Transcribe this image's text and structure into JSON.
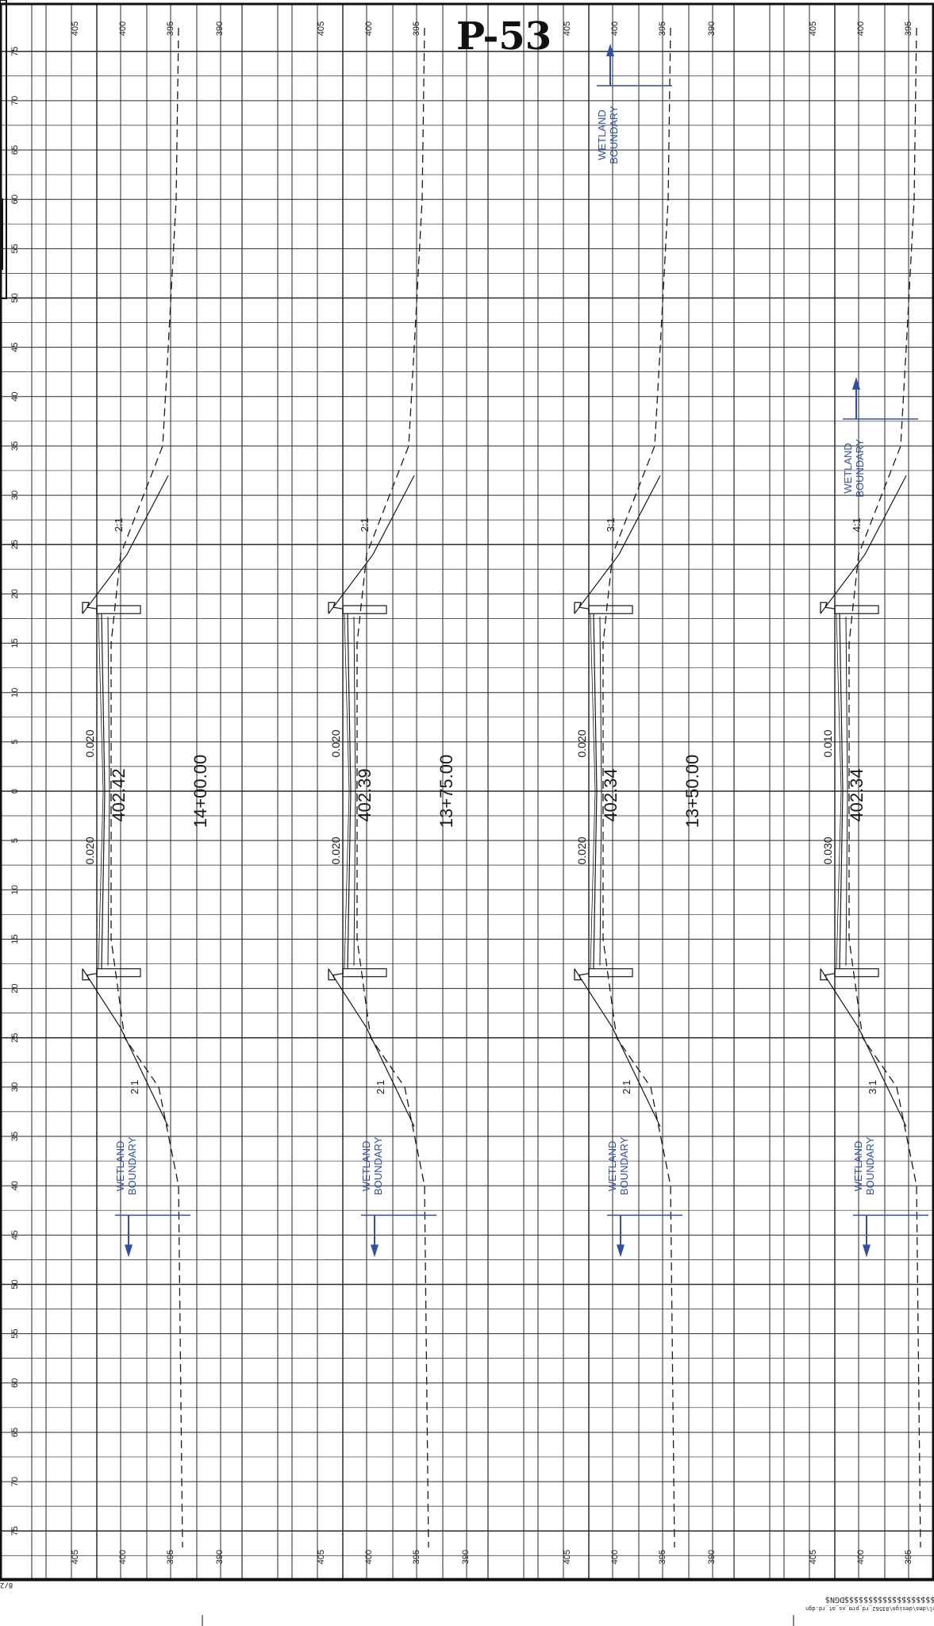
{
  "sheet": {
    "number": "P-53",
    "bottom_stamp": "$$$$$$$$$$$$$$$$$$$$$DGN$",
    "file_path": "ntsmodel\\dms\\design\\83562_rd_prm_xs_at_rd.dgn",
    "date_stamp": "8/2",
    "colors": {
      "grid": "#2a2a2a",
      "ink": "#1a1a1a",
      "annotation": "#2f4fa8"
    }
  },
  "offset_labels": [
    "75",
    "70",
    "65",
    "60",
    "55",
    "50",
    "45",
    "40",
    "35",
    "30",
    "25",
    "20",
    "15",
    "10",
    "5",
    "0",
    "5",
    "10",
    "15",
    "20",
    "25",
    "30",
    "35",
    "40",
    "45",
    "50",
    "55",
    "60",
    "65",
    "70",
    "75"
  ],
  "elevation_labels": [
    "405",
    "400",
    "395",
    "390"
  ],
  "sections": [
    {
      "station": "14+00.00",
      "profile_grade": "402.42",
      "slope_top": "0.020",
      "slope_bottom": "0.020",
      "fill_slope_top": "2:1",
      "fill_slope_bottom": "2:1",
      "wetland_label": [
        "WETLAND",
        "BOUNDARY"
      ],
      "wetland_direction": "down"
    },
    {
      "station": "13+75.00",
      "profile_grade": "402.39",
      "slope_top": "0.020",
      "slope_bottom": "0.020",
      "fill_slope_top": "2:1",
      "fill_slope_bottom": "2:1",
      "wetland_label": [
        "WETLAND",
        "BOUNDARY"
      ],
      "wetland_direction": "down"
    },
    {
      "station": "13+50.00",
      "profile_grade": "402.34",
      "slope_top": "0.020",
      "slope_bottom": "0.020",
      "fill_slope_top": "3:1",
      "fill_slope_bottom": "2:1",
      "wetland_label": [
        "WETLAND",
        "BOUNDARY"
      ],
      "wetland_direction": "down",
      "wetland_label_upper": [
        "WETLAND",
        "BOUNDARY"
      ]
    },
    {
      "station": "13+25.00",
      "profile_grade": "402.34",
      "slope_top": "0.010",
      "slope_bottom": "0.030",
      "fill_slope_top": "4:1",
      "fill_slope_bottom": "3:1",
      "wetland_label": [
        "WETLAND",
        "BOUNDARY"
      ],
      "wetland_direction": "down",
      "wetland_label_upper": [
        "WETLAND",
        "BOUNDARY"
      ]
    }
  ]
}
